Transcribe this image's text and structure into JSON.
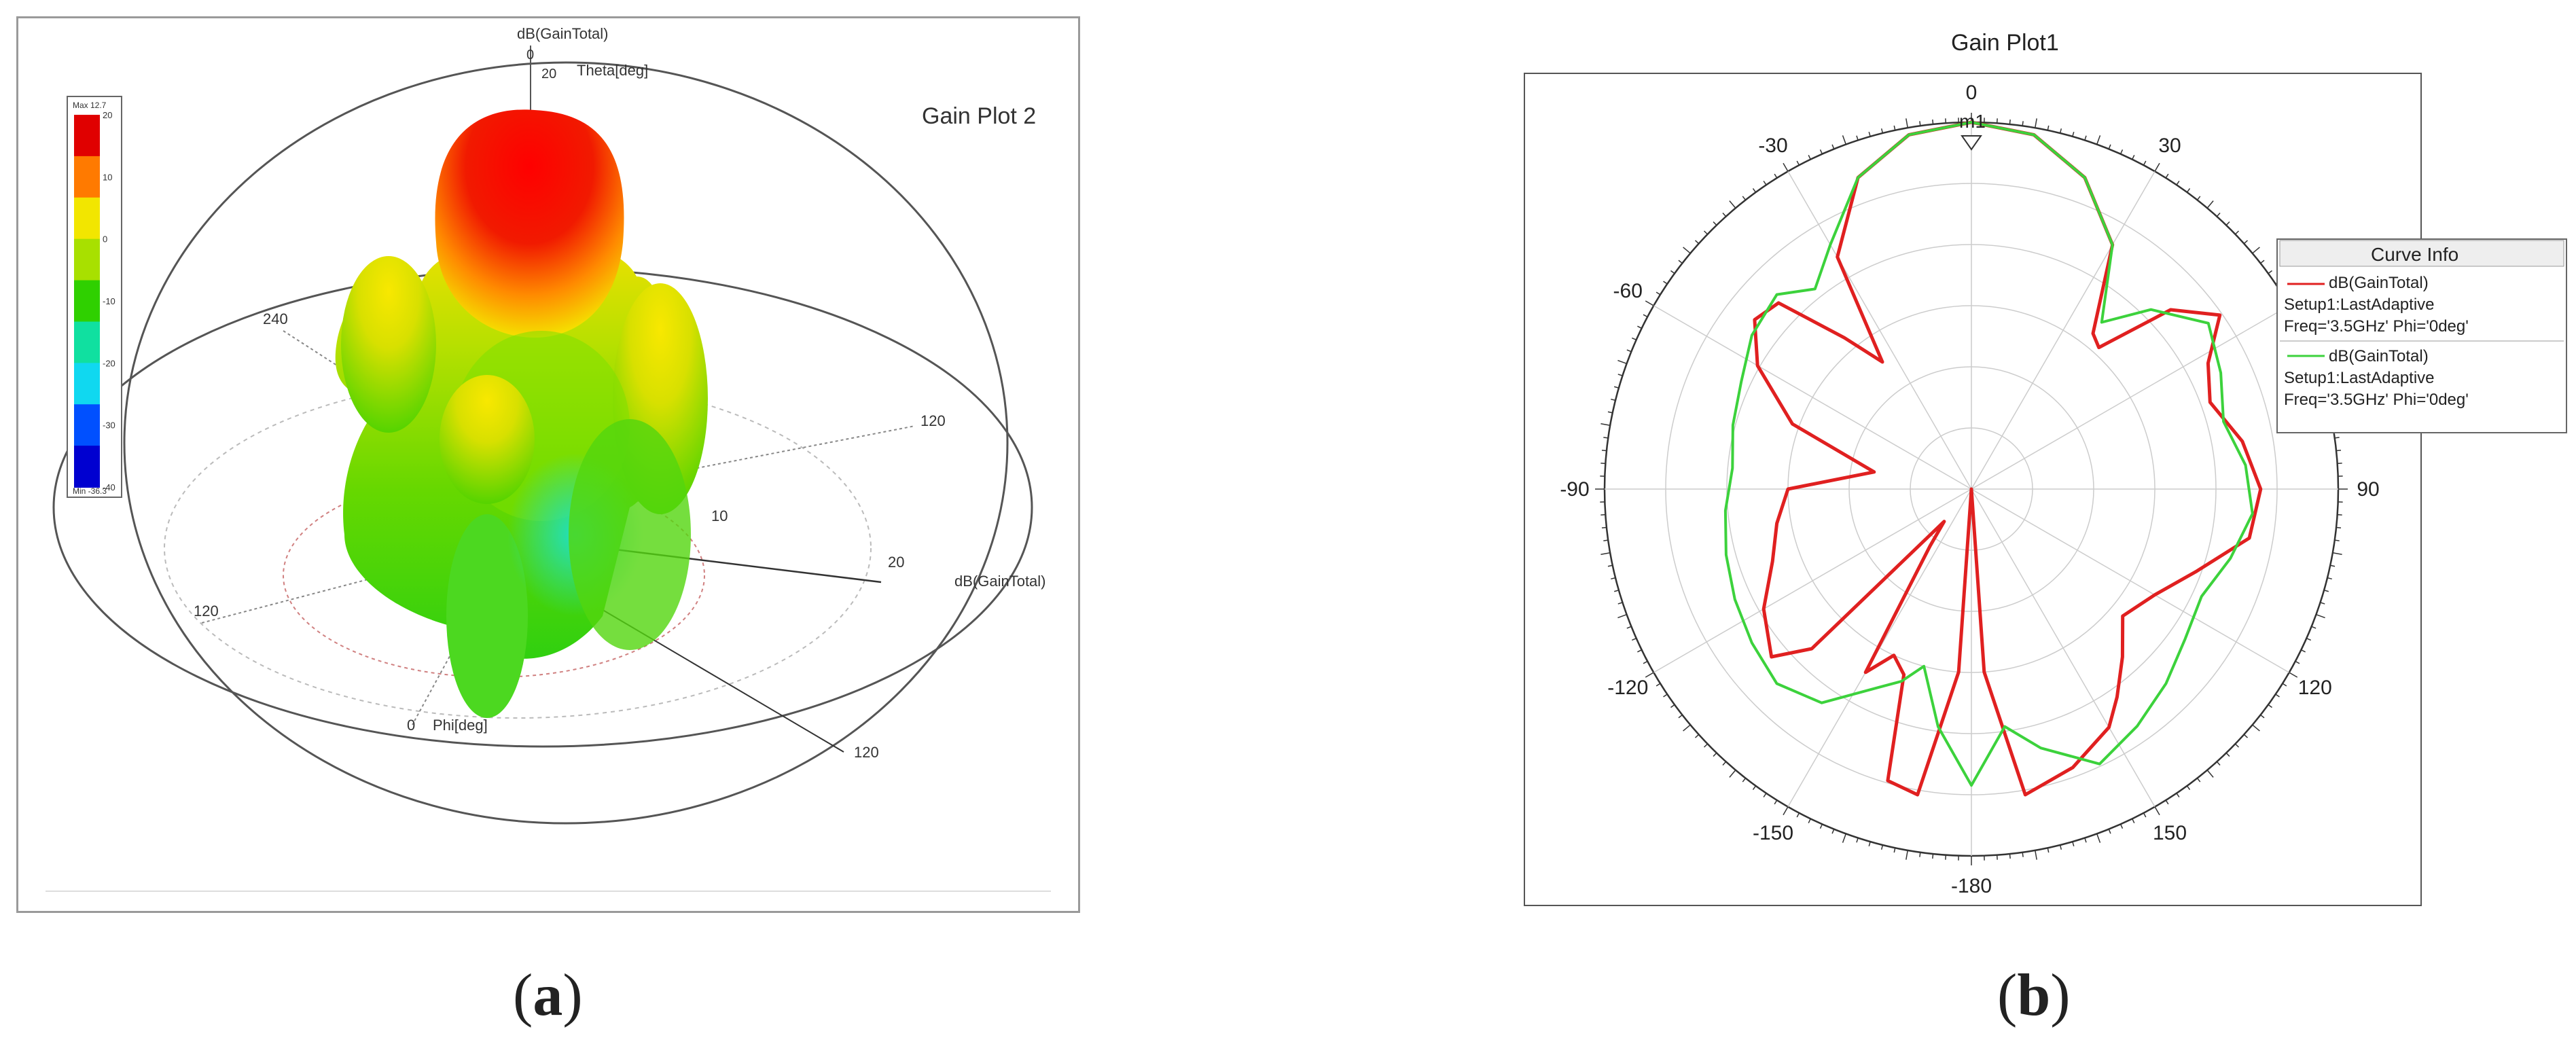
{
  "captions": {
    "a_open": "(",
    "a_letter": "a",
    "a_close": ")",
    "b_open": "(",
    "b_letter": "b",
    "b_close": ")"
  },
  "chart_data": [
    {
      "type": "other",
      "title": "Gain Plot 2",
      "top_label": "dB(GainTotal)",
      "theta_label": "Theta[deg]",
      "phi_label": "Phi[deg]",
      "right_label": "dB(GainTotal)",
      "axis_ticks": {
        "t0": "0",
        "t20a": "20",
        "t240": "240",
        "t120a": "120",
        "t10": "10",
        "t20b": "20",
        "t120b": "120",
        "t120c": "120",
        "t0phi": "0"
      },
      "colorbar": {
        "max_label": "Max 12.7",
        "min_label": "Min -36.3",
        "ticks": [
          "20",
          "10",
          "0",
          "-10",
          "-20",
          "-30",
          "-40"
        ],
        "colors": [
          "#e00000",
          "#ff7a00",
          "#f2e600",
          "#a8e000",
          "#2fd000",
          "#10e0a0",
          "#10d8f0",
          "#0050ff",
          "#0000d0"
        ]
      }
    },
    {
      "type": "polar-line",
      "title": "Gain Plot1",
      "marker": "m1",
      "angle_ticks": [
        "0",
        "30",
        "60",
        "90",
        "120",
        "150",
        "-180",
        "-150",
        "-120",
        "-90",
        "-60",
        "-30"
      ],
      "angle_tick_values": [
        0,
        30,
        60,
        90,
        120,
        150,
        180,
        -150,
        -120,
        -90,
        -60,
        -30
      ],
      "radial_range": [
        -40,
        12
      ],
      "legend": {
        "title": "Curve Info",
        "entries": [
          {
            "line1": "dB(GainTotal)",
            "line2": "Setup1:LastAdaptive",
            "line3": "Freq='3.5GHz' Phi='0deg'",
            "color": "#e02020"
          },
          {
            "line1": "dB(GainTotal)",
            "line2": "Setup1:LastAdaptive",
            "line3": "Freq='3.5GHz' Phi='0deg'",
            "color": "#3cd23c"
          }
        ]
      },
      "series": [
        {
          "color": "#e02020",
          "theta": [
            0,
            10,
            20,
            30,
            38,
            42,
            48,
            55,
            62,
            70,
            80,
            90,
            100,
            110,
            120,
            130,
            138,
            145,
            150,
            160,
            170,
            176,
            180,
            184,
            190,
            196,
            200,
            205,
            210,
            216,
            220,
            225,
            230,
            240,
            250,
            260,
            270,
            280,
            290,
            300,
            308,
            314,
            320,
            325,
            330,
            340,
            350,
            360
          ],
          "r": [
            12,
            11,
            7,
            0,
            -12,
            -13,
            -2,
            3,
            -2,
            -4,
            -1,
            1,
            0,
            -6,
            -10,
            -12,
            -8,
            -4,
            -1,
            2,
            4,
            -14,
            -40,
            -14,
            4,
            3,
            -12,
            -14,
            -10,
            -30,
            -34,
            -8,
            -3,
            -6,
            -10,
            -12,
            -14,
            -26,
            -13,
            -5,
            -1,
            -2,
            -12,
            -18,
            -2,
            7,
            11,
            12
          ]
        },
        {
          "color": "#3cd23c",
          "theta": [
            0,
            10,
            20,
            30,
            38,
            45,
            55,
            65,
            75,
            85,
            95,
            105,
            115,
            125,
            135,
            145,
            155,
            165,
            172,
            180,
            188,
            195,
            200,
            205,
            215,
            225,
            235,
            245,
            255,
            265,
            275,
            285,
            295,
            305,
            315,
            322,
            330,
            340,
            350,
            360
          ],
          "r": [
            12,
            11,
            7,
            0,
            -10,
            -4,
            1,
            -1,
            -3,
            -1,
            0,
            -2,
            -4,
            -3,
            -1,
            1,
            3,
            -2,
            -6,
            2,
            -6,
            -14,
            -11,
            -9,
            -3,
            -1,
            -2,
            -3,
            -4,
            -5,
            -6,
            -5,
            -4,
            -2,
            -1,
            -4,
            0,
            7,
            11,
            12
          ]
        }
      ]
    }
  ]
}
